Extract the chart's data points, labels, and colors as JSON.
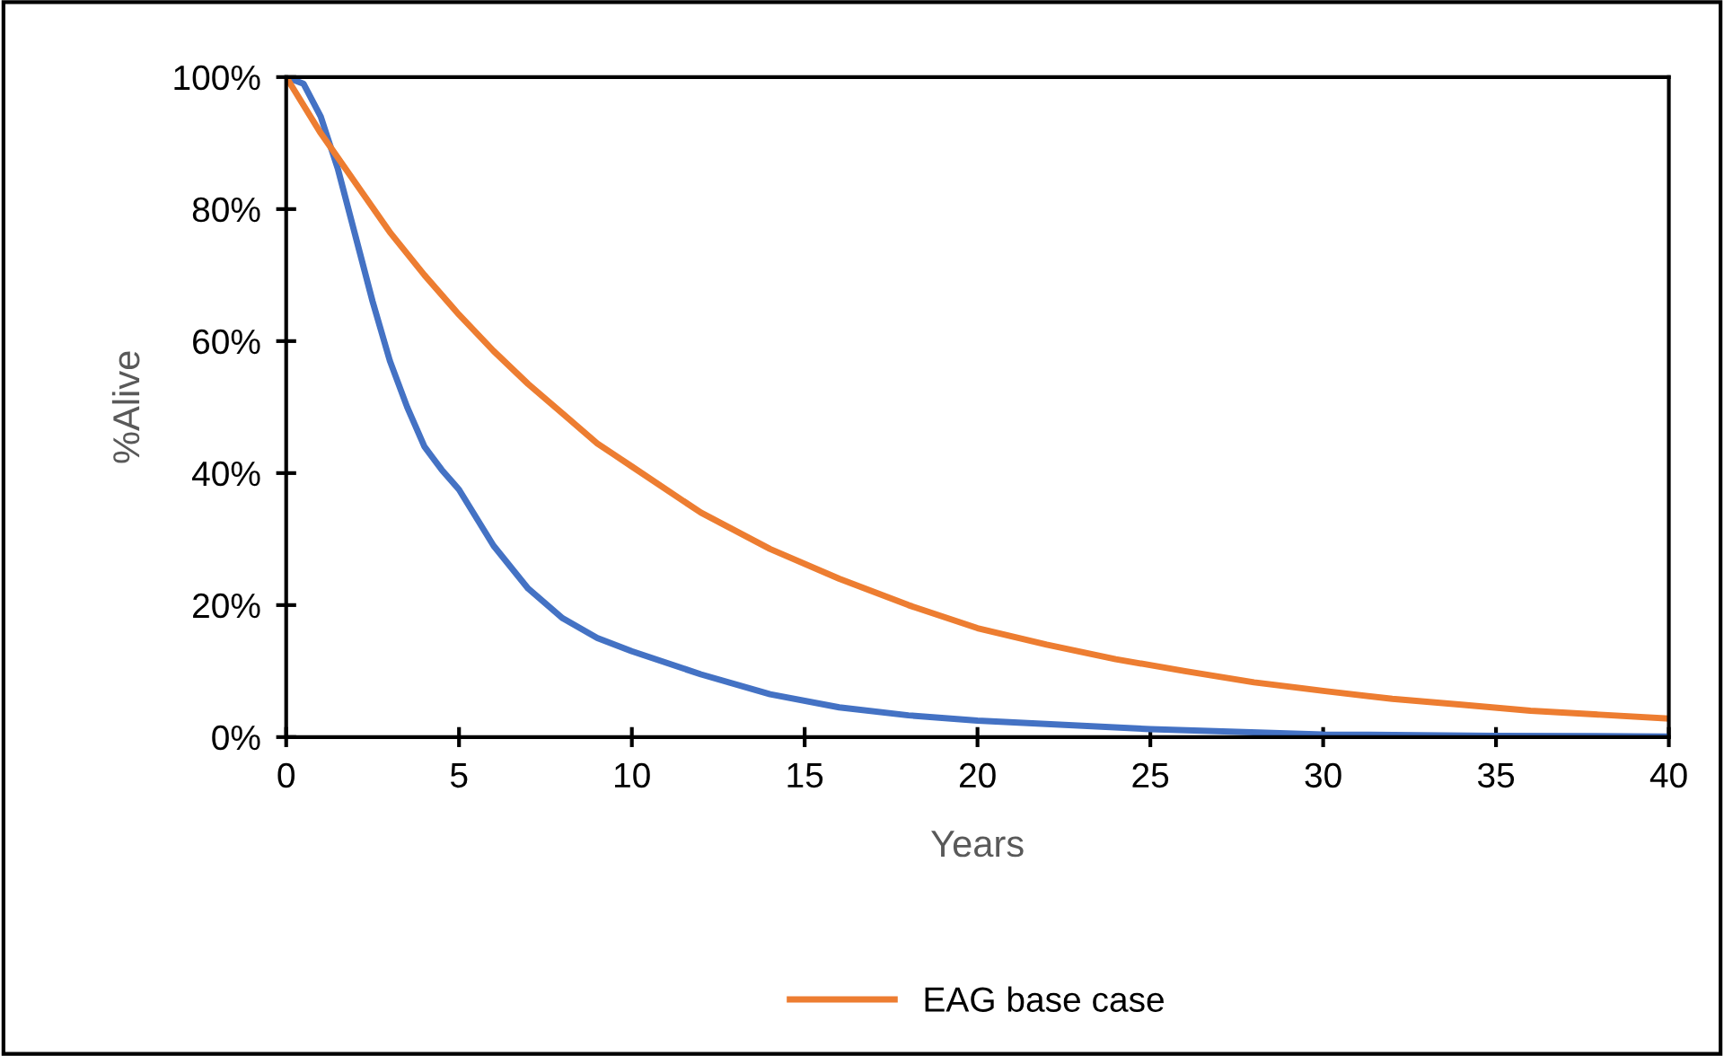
{
  "chart_data": {
    "type": "line",
    "xlabel": "Years",
    "ylabel": "%Alive",
    "xlim": [
      0,
      40
    ],
    "xticks": [
      0,
      5,
      10,
      15,
      20,
      25,
      30,
      35,
      40
    ],
    "ylim": [
      0,
      100
    ],
    "yticks": [
      {
        "value": 0,
        "label": "0%"
      },
      {
        "value": 20,
        "label": "20%"
      },
      {
        "value": 40,
        "label": "40%"
      },
      {
        "value": 60,
        "label": "60%"
      },
      {
        "value": 80,
        "label": "80%"
      },
      {
        "value": 100,
        "label": "100%"
      }
    ],
    "grid": false,
    "legend": "bottom",
    "marker": "none",
    "line_style": "solid",
    "series": [
      {
        "color": "#4472c4",
        "x": [
          0,
          0.5,
          1,
          1.5,
          2,
          2.5,
          3,
          3.5,
          4,
          4.5,
          5,
          6,
          7,
          8,
          9,
          10,
          12,
          14,
          16,
          18,
          20,
          25,
          30,
          35,
          40
        ],
        "values": [
          100,
          99,
          94,
          86,
          76,
          66,
          57,
          50,
          44,
          40.5,
          37.5,
          29,
          22.5,
          18,
          15,
          13,
          9.5,
          6.5,
          4.5,
          3.3,
          2.5,
          1.2,
          0.4,
          0.2,
          0.1
        ]
      },
      {
        "name": "EAG base case",
        "color": "#ed7d31",
        "x": [
          0,
          1,
          2,
          3,
          4,
          5,
          6,
          7,
          8,
          9,
          10,
          12,
          14,
          16,
          18,
          20,
          22,
          24,
          26,
          28,
          30,
          32,
          34,
          36,
          38,
          40
        ],
        "values": [
          100,
          91.5,
          84,
          76.5,
          70,
          64,
          58.5,
          53.5,
          49,
          44.5,
          41,
          34,
          28.5,
          24,
          20,
          16.5,
          14,
          11.8,
          10,
          8.3,
          7,
          5.8,
          4.9,
          4,
          3.4,
          2.8
        ]
      }
    ]
  }
}
